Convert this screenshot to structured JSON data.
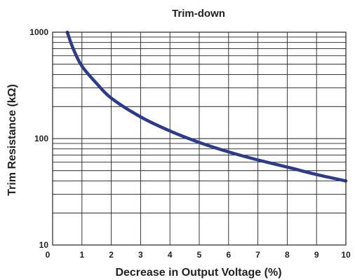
{
  "chart_data": {
    "type": "line",
    "title": "Trim-down",
    "xlabel": "Decrease in Output Voltage (%)",
    "ylabel": "Trim Resistance (kΩ)",
    "xlim": [
      0,
      10
    ],
    "ylim": [
      10,
      1000
    ],
    "y_scale": "log",
    "grid": true,
    "x_ticks": [
      "0",
      "1",
      "2",
      "3",
      "4",
      "5",
      "6",
      "7",
      "8",
      "9",
      "10"
    ],
    "y_ticks": [
      "10",
      "100",
      "1000"
    ],
    "series": [
      {
        "color": "#2b3b91",
        "x": [
          0.5,
          0.7,
          1.0,
          1.5,
          2.0,
          3.0,
          4.0,
          5.0,
          6.0,
          7.0,
          8.0,
          9.0,
          10.0
        ],
        "y": [
          1000,
          700,
          480,
          330,
          240,
          160,
          118,
          92,
          75,
          63,
          54,
          46,
          40
        ]
      }
    ]
  }
}
